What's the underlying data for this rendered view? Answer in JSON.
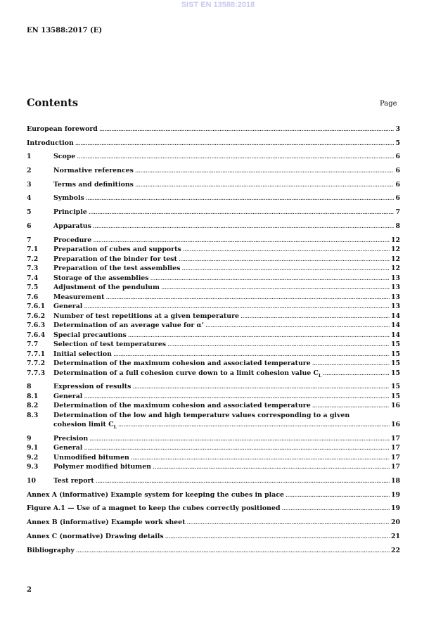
{
  "watermark": "SIST EN 13588:2018",
  "header": "EN 13588:2017 (E)",
  "title": "Contents",
  "page_label": "Page",
  "page_number": "2",
  "groups": [
    [
      {
        "num": "",
        "title": "European foreword",
        "page": "3"
      }
    ],
    [
      {
        "num": "",
        "title": "Introduction",
        "page": "5"
      }
    ],
    [
      {
        "num": "1",
        "title": "Scope",
        "page": "6"
      }
    ],
    [
      {
        "num": "2",
        "title": "Normative references",
        "page": "6"
      }
    ],
    [
      {
        "num": "3",
        "title": "Terms and definitions",
        "page": "6"
      }
    ],
    [
      {
        "num": "4",
        "title": "Symbols",
        "page": "6"
      }
    ],
    [
      {
        "num": "5",
        "title": "Principle",
        "page": "7"
      }
    ],
    [
      {
        "num": "6",
        "title": "Apparatus",
        "page": "8"
      }
    ],
    [
      {
        "num": "7",
        "title": "Procedure",
        "page": "12"
      },
      {
        "num": "7.1",
        "title": "Preparation of cubes and supports",
        "page": "12"
      },
      {
        "num": "7.2",
        "title": "Preparation of the binder for test",
        "page": "12"
      },
      {
        "num": "7.3",
        "title": "Preparation of the test assemblies",
        "page": "12"
      },
      {
        "num": "7.4",
        "title": "Storage of the assemblies",
        "page": "13"
      },
      {
        "num": "7.5",
        "title": "Adjustment of the pendulum",
        "page": "13"
      },
      {
        "num": "7.6",
        "title": "Measurement",
        "page": "13"
      },
      {
        "num": "7.6.1",
        "title": "General",
        "page": "13"
      },
      {
        "num": "7.6.2",
        "title": "Number of test repetitions at a given temperature",
        "page": "14"
      },
      {
        "num": "7.6.3",
        "title": "Determination of an average value for α’",
        "page": "14"
      },
      {
        "num": "7.6.4",
        "title": "Special precautions",
        "page": "14"
      },
      {
        "num": "7.7",
        "title": "Selection of test temperatures",
        "page": "15"
      },
      {
        "num": "7.7.1",
        "title": "Initial selection",
        "page": "15"
      },
      {
        "num": "7.7.2",
        "title": "Determination of the maximum cohesion and associated temperature",
        "page": "15"
      },
      {
        "num": "7.7.3",
        "title": "Determination of a full cohesion curve down to a limit cohesion value C",
        "sub": "L",
        "page": "15"
      }
    ],
    [
      {
        "num": "8",
        "title": "Expression of results",
        "page": "15"
      },
      {
        "num": "8.1",
        "title": "General",
        "page": "15"
      },
      {
        "num": "8.2",
        "title": "Determination of the maximum cohesion and associated temperature",
        "page": "16"
      },
      {
        "num": "8.3",
        "title": "Determination of the low and high temperature values corresponding to a given",
        "page": ""
      },
      {
        "num": "",
        "indent": true,
        "title": "cohesion limit C",
        "sub": "L",
        "page": "16"
      }
    ],
    [
      {
        "num": "9",
        "title": "Precision",
        "page": "17"
      },
      {
        "num": "9.1",
        "title": "General",
        "page": "17"
      },
      {
        "num": "9.2",
        "title": "Unmodified bitumen",
        "page": "17"
      },
      {
        "num": "9.3",
        "title": "Polymer modified bitumen",
        "page": "17"
      }
    ],
    [
      {
        "num": "10",
        "title": "Test report",
        "page": "18"
      }
    ],
    [
      {
        "num": "",
        "title": "Annex A (informative)  Example system for keeping the cubes in place",
        "page": "19"
      }
    ],
    [
      {
        "num": "",
        "title": "Figure A.1 — Use of a magnet to keep the cubes correctly positioned",
        "page": "19"
      }
    ],
    [
      {
        "num": "",
        "title": "Annex B (informative)  Example work sheet",
        "page": "20"
      }
    ],
    [
      {
        "num": "",
        "title": "Annex C (normative)   Drawing details",
        "page": "21"
      }
    ],
    [
      {
        "num": "",
        "title": "Bibliography",
        "page": "22"
      }
    ]
  ]
}
